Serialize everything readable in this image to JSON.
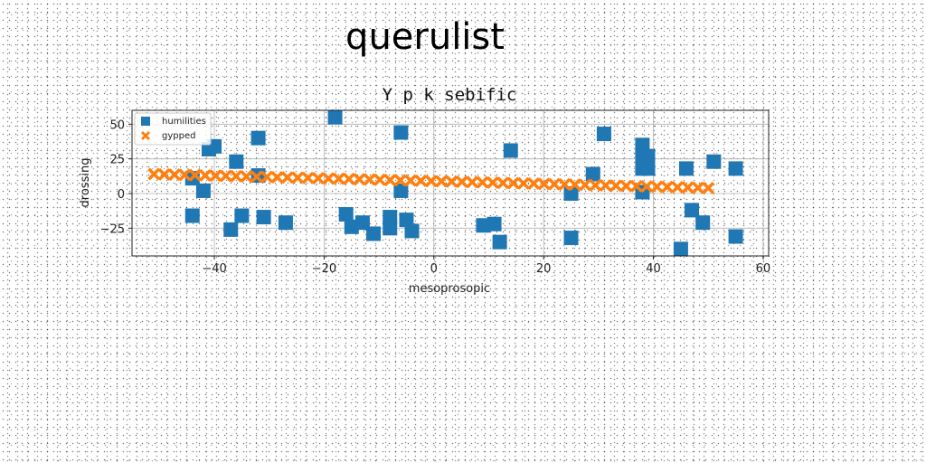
{
  "page": {
    "title": "querulist"
  },
  "chart_data": {
    "type": "scatter",
    "title": "Y p k sebific",
    "xlabel": "mesoprosopic",
    "ylabel": "drossing",
    "xlim": [
      -55,
      61
    ],
    "ylim": [
      -45,
      60
    ],
    "xticks": [
      -40,
      -20,
      0,
      20,
      40,
      60
    ],
    "yticks": [
      -25,
      0,
      25,
      50
    ],
    "xtick_labels": [
      "−40",
      "−20",
      "0",
      "20",
      "40",
      "60"
    ],
    "ytick_labels": [
      "−25",
      "0",
      "25",
      "50"
    ],
    "grid": true,
    "legend": {
      "placement": "top-left"
    },
    "series": [
      {
        "name": "humilities",
        "marker": "square",
        "color": "#1f77b4",
        "points": [
          [
            -44,
            11
          ],
          [
            -44,
            -16
          ],
          [
            -42,
            2
          ],
          [
            -41,
            32
          ],
          [
            -40,
            34
          ],
          [
            -36,
            23
          ],
          [
            -37,
            -26
          ],
          [
            -35,
            -16
          ],
          [
            -32,
            40
          ],
          [
            -32,
            13
          ],
          [
            -31,
            -17
          ],
          [
            -27,
            -21
          ],
          [
            -18,
            55
          ],
          [
            -16,
            -15
          ],
          [
            -15,
            -24
          ],
          [
            -13,
            -21
          ],
          [
            -11,
            -29
          ],
          [
            -8,
            -25
          ],
          [
            -8,
            -17
          ],
          [
            -6,
            2
          ],
          [
            -6,
            44
          ],
          [
            -5,
            -19
          ],
          [
            -4,
            -27
          ],
          [
            9,
            -23
          ],
          [
            11,
            -22
          ],
          [
            12,
            -35
          ],
          [
            14,
            31
          ],
          [
            25,
            0
          ],
          [
            25,
            -32
          ],
          [
            29,
            14
          ],
          [
            31,
            43
          ],
          [
            38,
            35
          ],
          [
            38,
            27
          ],
          [
            38,
            18
          ],
          [
            38,
            1
          ],
          [
            39,
            27
          ],
          [
            39,
            18
          ],
          [
            45,
            -40
          ],
          [
            46,
            18
          ],
          [
            47,
            -12
          ],
          [
            49,
            -21
          ],
          [
            51,
            23
          ],
          [
            55,
            18
          ],
          [
            55,
            -31
          ]
        ]
      },
      {
        "name": "gypped",
        "marker": "x-filled",
        "color": "#ff7f0e",
        "x_start": -51,
        "x_end": 50,
        "y_start": 14,
        "y_end": 4,
        "count": 55
      }
    ]
  }
}
